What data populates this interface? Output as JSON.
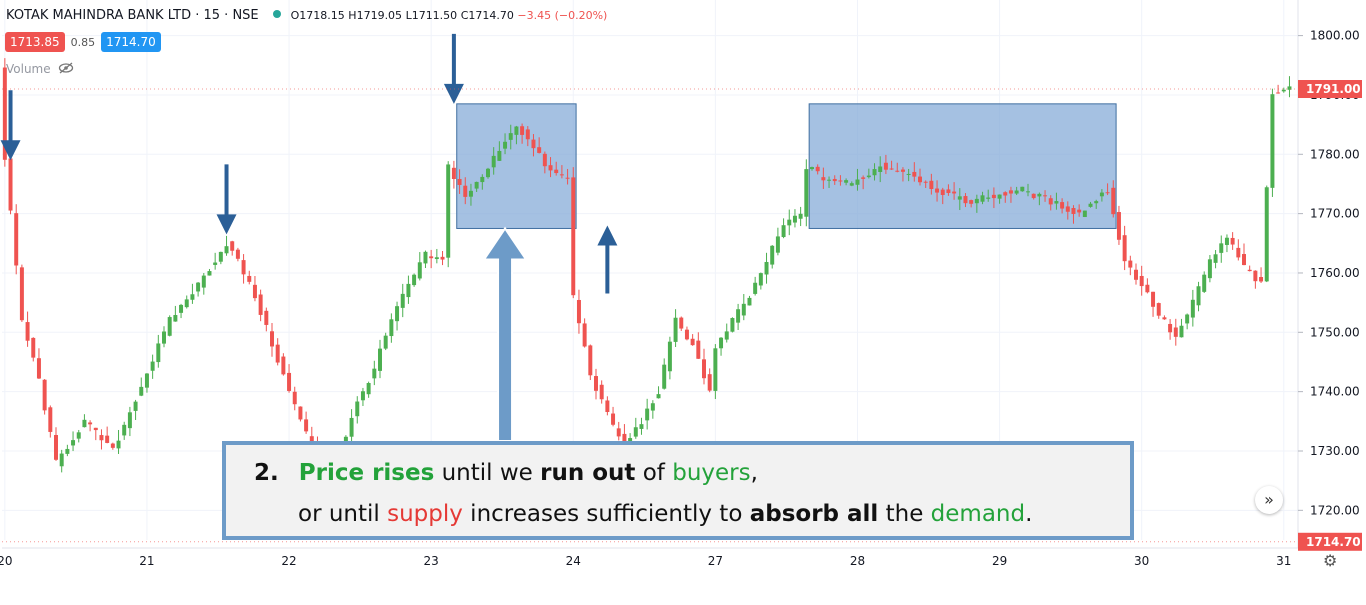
{
  "header": {
    "symbol": "KOTAK MAHINDRA BANK LTD · 15 · NSE",
    "open": "O1718.15",
    "high": "H1719.05",
    "low": "L1711.50",
    "close": "C1714.70",
    "change": "−3.45 (−0.20%)"
  },
  "badges": {
    "bid": "1713.85",
    "spread": "0.85",
    "ask": "1714.70"
  },
  "volume_label": "Volume",
  "callout": {
    "number": "2.",
    "line1": [
      {
        "t": "Price rises",
        "s": "gb"
      },
      {
        "t": " until we ",
        "s": ""
      },
      {
        "t": "run out",
        "s": "bold"
      },
      {
        "t": " of ",
        "s": ""
      },
      {
        "t": "buyers",
        "s": "g"
      },
      {
        "t": ",",
        "s": ""
      }
    ],
    "line2": [
      {
        "t": "or until ",
        "s": ""
      },
      {
        "t": "supply",
        "s": "r"
      },
      {
        "t": " increases sufficiently to ",
        "s": ""
      },
      {
        "t": "absorb all",
        "s": "bold"
      },
      {
        "t": " the ",
        "s": ""
      },
      {
        "t": "demand",
        "s": "g"
      },
      {
        "t": ".",
        "s": ""
      }
    ]
  },
  "scroll_glyph": "»",
  "gear_glyph": "⚙",
  "colors": {
    "up": "#4caf50",
    "down": "#ef5350",
    "zone_fill": "#7fa6d6",
    "zone_stroke": "#3f6ea0",
    "arrow": "#2b5f97",
    "big_arrow": "#6d9bc8"
  },
  "chart_data": {
    "type": "candlestick",
    "ylim": [
      1715,
      1806
    ],
    "y_ticks": [
      1720,
      1730,
      1740,
      1750,
      1760,
      1770,
      1780,
      1790,
      1800
    ],
    "x_ticks": [
      "20",
      "21",
      "22",
      "23",
      "24",
      "27",
      "28",
      "29",
      "30",
      "31"
    ],
    "price_labels": [
      {
        "value": 1791.0,
        "text": "1791.00",
        "color": "#ef5350"
      },
      {
        "value": 1714.7,
        "text": "1714.70",
        "color": "#ef5350"
      }
    ],
    "key_points": [
      [
        0,
        1795
      ],
      [
        1,
        1779
      ],
      [
        4,
        1752
      ],
      [
        7,
        1742
      ],
      [
        10,
        1728
      ],
      [
        15,
        1735
      ],
      [
        20,
        1730
      ],
      [
        25,
        1741
      ],
      [
        30,
        1752
      ],
      [
        35,
        1758
      ],
      [
        40,
        1765
      ],
      [
        42,
        1762
      ],
      [
        45,
        1756
      ],
      [
        48,
        1748
      ],
      [
        51,
        1740
      ],
      [
        54,
        1733
      ],
      [
        57,
        1726
      ],
      [
        60,
        1730
      ],
      [
        63,
        1738
      ],
      [
        66,
        1744
      ],
      [
        69,
        1752
      ],
      [
        72,
        1758
      ],
      [
        75,
        1763
      ],
      [
        78,
        1762
      ],
      [
        79,
        1778
      ],
      [
        82,
        1773
      ],
      [
        85,
        1776
      ],
      [
        88,
        1781
      ],
      [
        91,
        1785
      ],
      [
        94,
        1781
      ],
      [
        97,
        1777
      ],
      [
        100,
        1776
      ],
      [
        101,
        1756
      ],
      [
        104,
        1743
      ],
      [
        107,
        1736
      ],
      [
        110,
        1731
      ],
      [
        113,
        1735
      ],
      [
        116,
        1740
      ],
      [
        119,
        1752
      ],
      [
        122,
        1748
      ],
      [
        125,
        1740
      ],
      [
        126,
        1747
      ],
      [
        129,
        1752
      ],
      [
        132,
        1756
      ],
      [
        135,
        1762
      ],
      [
        138,
        1768
      ],
      [
        141,
        1770
      ],
      [
        142,
        1778
      ],
      [
        145,
        1776
      ],
      [
        150,
        1775
      ],
      [
        155,
        1778
      ],
      [
        160,
        1777
      ],
      [
        165,
        1774
      ],
      [
        170,
        1772
      ],
      [
        175,
        1773
      ],
      [
        180,
        1774
      ],
      [
        185,
        1772
      ],
      [
        190,
        1770
      ],
      [
        195,
        1774
      ],
      [
        198,
        1762
      ],
      [
        201,
        1758
      ],
      [
        204,
        1753
      ],
      [
        207,
        1749
      ],
      [
        210,
        1755
      ],
      [
        213,
        1762
      ],
      [
        216,
        1766
      ],
      [
        219,
        1761
      ],
      [
        222,
        1758
      ],
      [
        224,
        1790
      ],
      [
        226,
        1791
      ]
    ],
    "zones": [
      {
        "x0": 79.5,
        "x1": 100.5,
        "y0": 1767.5,
        "y1": 1788.5
      },
      {
        "x0": 141.5,
        "x1": 195.5,
        "y0": 1767.5,
        "y1": 1788.5
      }
    ],
    "down_arrows": [
      {
        "x": 1,
        "y": 1779
      },
      {
        "x": 39,
        "y": 1766.5
      },
      {
        "x": 79,
        "y": 1788.5
      }
    ],
    "up_arrows": [
      {
        "x": 106,
        "y": 1768
      }
    ],
    "big_up_arrow": {
      "x": 88,
      "y_top": 1767.5
    }
  }
}
